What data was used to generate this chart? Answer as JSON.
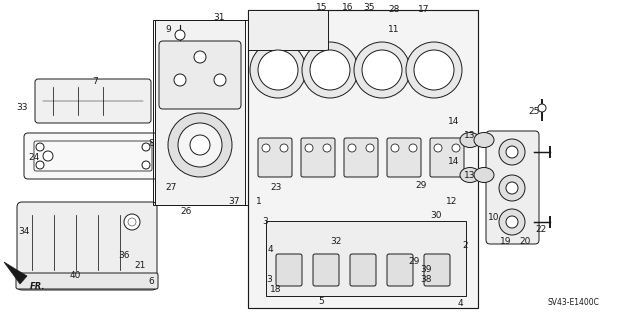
{
  "bg_color": "#ffffff",
  "line_color": "#1a1a1a",
  "diagram_code": "SV43-E1400C",
  "labels": [
    [
      "7",
      92,
      82
    ],
    [
      "33",
      16,
      107
    ],
    [
      "8",
      148,
      143
    ],
    [
      "24",
      28,
      158
    ],
    [
      "34",
      18,
      232
    ],
    [
      "36",
      118,
      255
    ],
    [
      "21",
      134,
      265
    ],
    [
      "40",
      70,
      275
    ],
    [
      "6",
      148,
      282
    ],
    [
      "9",
      165,
      30
    ],
    [
      "31",
      213,
      18
    ],
    [
      "27",
      165,
      187
    ],
    [
      "26",
      180,
      212
    ],
    [
      "37",
      228,
      202
    ],
    [
      "15",
      316,
      8
    ],
    [
      "16",
      342,
      8
    ],
    [
      "35",
      363,
      8
    ],
    [
      "28",
      388,
      10
    ],
    [
      "17",
      418,
      10
    ],
    [
      "11",
      388,
      30
    ],
    [
      "14",
      448,
      122
    ],
    [
      "14",
      448,
      162
    ],
    [
      "13",
      464,
      135
    ],
    [
      "13",
      464,
      175
    ],
    [
      "12",
      446,
      202
    ],
    [
      "1",
      256,
      202
    ],
    [
      "23",
      270,
      187
    ],
    [
      "29",
      415,
      185
    ],
    [
      "30",
      430,
      215
    ],
    [
      "3",
      262,
      222
    ],
    [
      "4",
      268,
      250
    ],
    [
      "32",
      330,
      242
    ],
    [
      "2",
      462,
      245
    ],
    [
      "29",
      408,
      262
    ],
    [
      "39",
      420,
      270
    ],
    [
      "38",
      420,
      280
    ],
    [
      "3",
      266,
      280
    ],
    [
      "18",
      270,
      290
    ],
    [
      "5",
      318,
      302
    ],
    [
      "4",
      458,
      304
    ],
    [
      "25",
      528,
      112
    ],
    [
      "10",
      488,
      218
    ],
    [
      "19",
      500,
      242
    ],
    [
      "20",
      519,
      242
    ],
    [
      "22",
      535,
      230
    ]
  ]
}
